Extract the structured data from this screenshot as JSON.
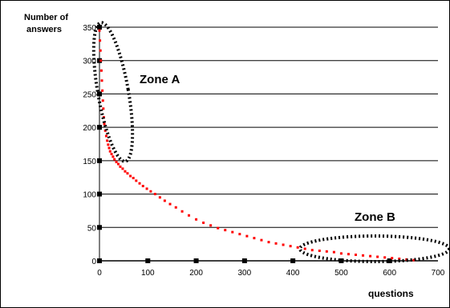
{
  "chart_data": {
    "type": "scatter",
    "title": "",
    "xlabel": "questions",
    "ylabel": "Number of answers",
    "ylabel_lines": [
      "Number of",
      "answers"
    ],
    "xlim": [
      0,
      700
    ],
    "ylim": [
      0,
      350
    ],
    "x_ticks": [
      0,
      100,
      200,
      300,
      400,
      500,
      600,
      700
    ],
    "y_ticks": [
      0,
      50,
      100,
      150,
      200,
      250,
      300,
      350
    ],
    "grid": "horizontal",
    "legend": "none",
    "series": [
      {
        "color": "#ff0000",
        "x": [
          0,
          1,
          2,
          3,
          4,
          5,
          6,
          7,
          8,
          9,
          10,
          12,
          14,
          16,
          18,
          20,
          22,
          25,
          28,
          31,
          35,
          39,
          43,
          48,
          53,
          58,
          64,
          70,
          76,
          83,
          90,
          98,
          106,
          115,
          125,
          135,
          146,
          158,
          171,
          185,
          200,
          215,
          230,
          245,
          260,
          275,
          290,
          305,
          320,
          335,
          350,
          365,
          380,
          395,
          410,
          425,
          440,
          455,
          470,
          485,
          500,
          515,
          530,
          545,
          560,
          575,
          590,
          605,
          620,
          635,
          650
        ],
        "y": [
          345,
          330,
          315,
          300,
          285,
          270,
          255,
          240,
          228,
          215,
          205,
          195,
          187,
          180,
          174,
          169,
          164,
          160,
          156,
          152,
          148,
          145,
          141,
          138,
          134,
          131,
          127,
          124,
          120,
          116,
          112,
          108,
          104,
          100,
          95,
          90,
          85,
          80,
          74,
          68,
          62,
          57,
          53,
          49,
          46,
          43,
          40,
          37,
          34,
          31,
          28,
          26,
          24,
          22,
          20,
          18,
          16,
          15,
          14,
          13,
          11,
          10,
          9,
          8,
          7,
          6,
          5,
          4,
          3,
          2,
          1
        ]
      }
    ],
    "annotations": [
      {
        "label": "Zone A",
        "x": 65,
        "y": 268
      },
      {
        "label": "Zone B",
        "x": 530,
        "y": 58
      }
    ]
  }
}
